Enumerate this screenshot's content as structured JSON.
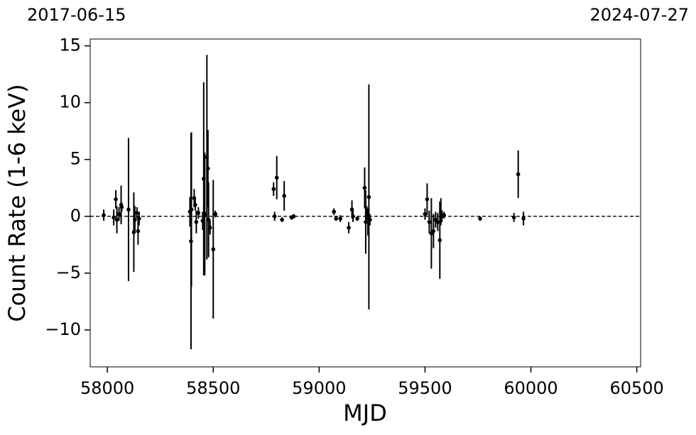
{
  "chart_data": {
    "type": "errorbar-scatter",
    "top_left_label": "2017-06-15",
    "top_right_label": "2024-07-27",
    "xlabel": "MJD",
    "ylabel": "Count Rate (1-6 keV)",
    "xlim": [
      57919,
      60518
    ],
    "ylim": [
      -13.25,
      15.6
    ],
    "xticks": [
      58000,
      58500,
      59000,
      59500,
      60000,
      60500
    ],
    "yticks": [
      {
        "value": -10,
        "label": "−10"
      },
      {
        "value": -5,
        "label": "−5"
      },
      0,
      5,
      10,
      15
    ],
    "reference_line": 0,
    "series": [
      {
        "color": "#000000",
        "x": [
          57983,
          58030,
          58040,
          58045,
          58055,
          58065,
          58068,
          58100,
          58125,
          58130,
          58140,
          58145,
          58150,
          58390,
          58395,
          58397,
          58410,
          58415,
          58420,
          58430,
          58450,
          58455,
          58460,
          58470,
          58475,
          58478,
          58485,
          58500,
          58510,
          58785,
          58790,
          58800,
          58825,
          58835,
          58870,
          58880,
          59070,
          59080,
          59100,
          59140,
          59155,
          59160,
          59180,
          59215,
          59220,
          59225,
          59230,
          59235,
          59240,
          59500,
          59510,
          59520,
          59530,
          59540,
          59550,
          59560,
          59570,
          59575,
          59580,
          59590,
          59760,
          59920,
          59940,
          59965
        ],
        "values": [
          0.1,
          -0.1,
          1.5,
          -0.3,
          0.2,
          1.0,
          0.8,
          0.6,
          -1.4,
          -0.3,
          0.3,
          -1.3,
          -0.2,
          0.4,
          -2.2,
          0.6,
          1.6,
          1.0,
          -0.5,
          0.3,
          -0.4,
          3.3,
          0.2,
          5.2,
          4.2,
          -0.3,
          -1.0,
          -2.9,
          0.2,
          2.4,
          0.0,
          3.4,
          -0.3,
          1.8,
          -0.1,
          0.0,
          0.4,
          -0.2,
          -0.2,
          -1.0,
          0.6,
          0.0,
          -0.2,
          2.5,
          -0.5,
          0.3,
          -0.5,
          1.7,
          -0.3,
          0.2,
          1.5,
          -0.5,
          -1.5,
          -1.3,
          -0.3,
          -0.5,
          -2.1,
          0.4,
          0.0,
          0.1,
          -0.2,
          -0.1,
          3.7,
          -0.2
        ],
        "errors": [
          0.5,
          0.7,
          0.8,
          1.2,
          0.6,
          1.7,
          0.4,
          6.3,
          3.5,
          1.2,
          0.5,
          1.2,
          0.6,
          1.3,
          9.5,
          6.8,
          0.8,
          0.5,
          1.0,
          0.5,
          0.8,
          8.5,
          5.4,
          9.0,
          3.4,
          3.3,
          0.6,
          6.1,
          0.3,
          0.6,
          0.4,
          1.9,
          0.2,
          1.3,
          0.2,
          0.2,
          0.3,
          0.2,
          0.3,
          0.5,
          0.8,
          0.5,
          0.2,
          1.8,
          2.8,
          0.6,
          1.2,
          9.9,
          0.5,
          0.5,
          1.4,
          1.0,
          3.1,
          1.5,
          0.7,
          0.8,
          3.4,
          1.2,
          0.5,
          0.3,
          0.2,
          0.4,
          2.1,
          0.6
        ]
      }
    ]
  }
}
